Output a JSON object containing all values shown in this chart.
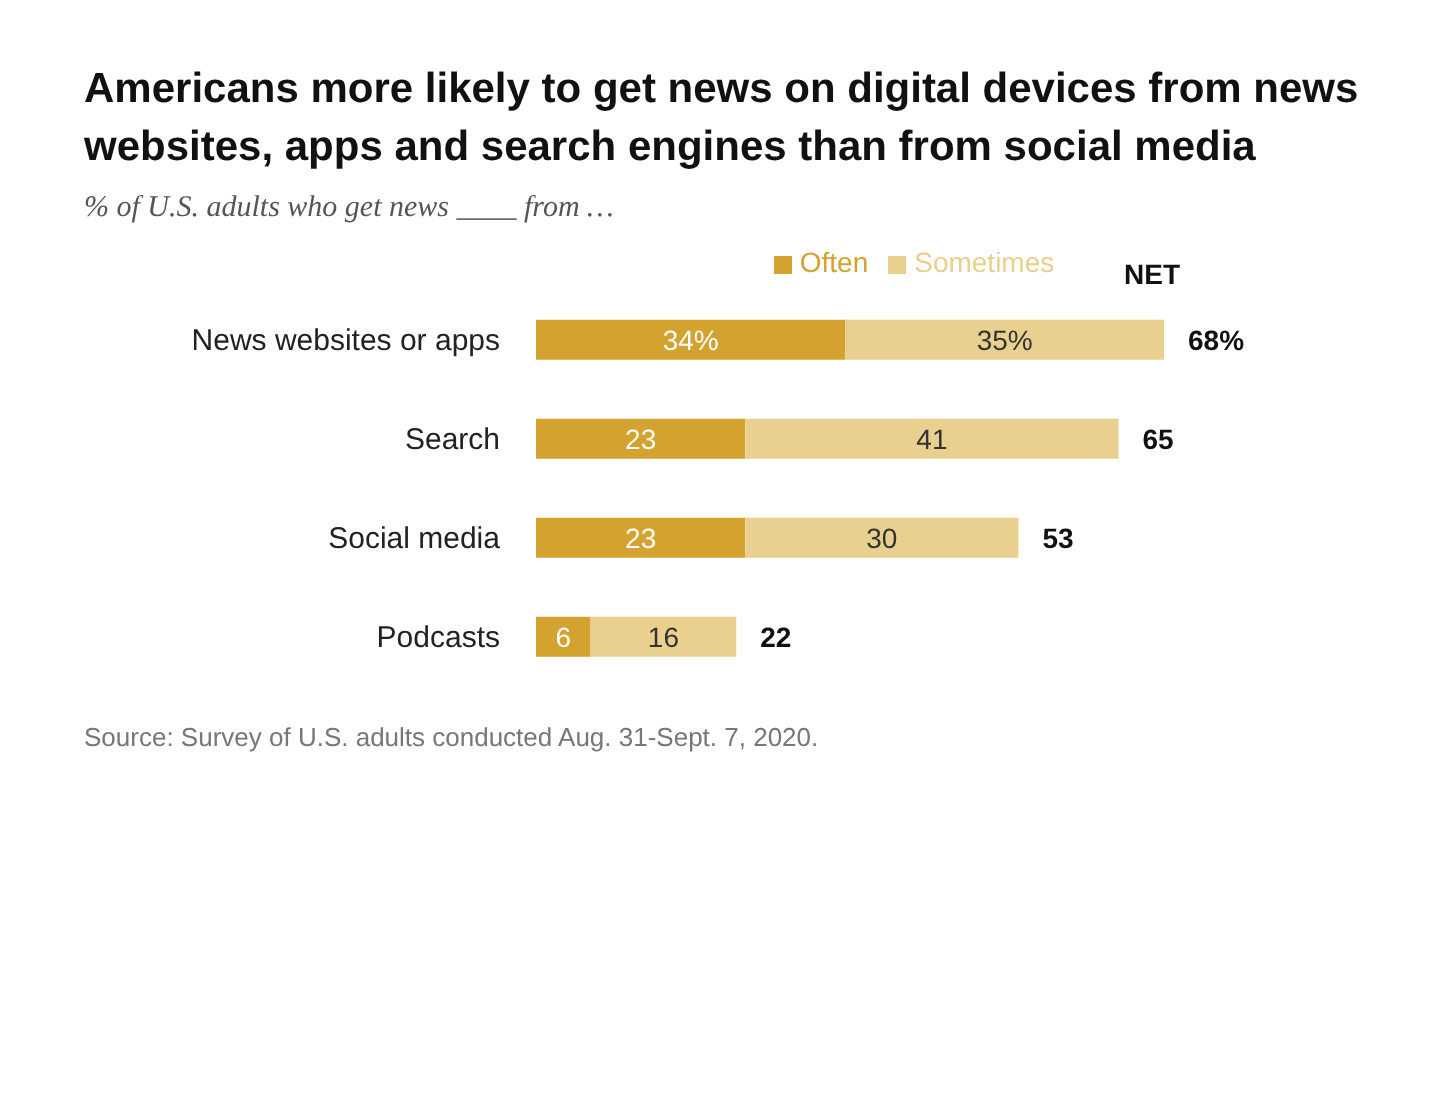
{
  "chart_data": {
    "type": "bar",
    "orientation": "horizontal",
    "stacked": true,
    "title": "Americans more likely to get news on digital devices from news websites, apps and search engines than from social media",
    "subtitle": "% of U.S. adults who get news ____ from …",
    "categories": [
      "News websites or apps",
      "Search",
      "Social media",
      "Podcasts"
    ],
    "series": [
      {
        "name": "Often",
        "color": "#d4a22f",
        "values": [
          34,
          23,
          23,
          6
        ],
        "value_labels": [
          "34%",
          "23",
          "23",
          "6"
        ]
      },
      {
        "name": "Sometimes",
        "color": "#e9d08e",
        "values": [
          35,
          41,
          30,
          16
        ],
        "value_labels": [
          "35%",
          "41",
          "30",
          "16"
        ]
      }
    ],
    "totals": [
      "68%",
      "65",
      "53",
      "22"
    ],
    "legend": "top",
    "annotations": [
      "NET",
      "Source: Survey of U.S. adults conducted Aug. 31-Sept. 7, 2020."
    ]
  }
}
